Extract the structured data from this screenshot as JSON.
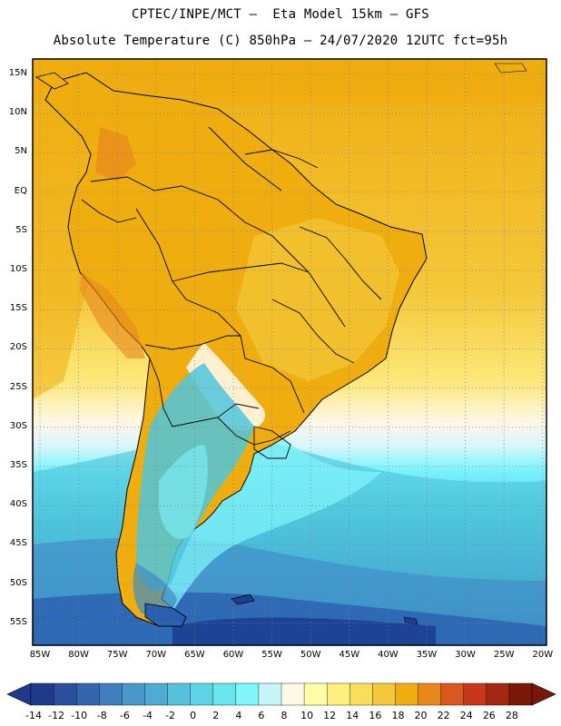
{
  "header": {
    "line1": "CPTEC/INPE/MCT –  Eta Model 15km – GFS",
    "line2": "Absolute Temperature (C) 850hPa – 24/07/2020 12UTC fct=95h"
  },
  "axes": {
    "lat_labels": [
      "15N",
      "10N",
      "5N",
      "EQ",
      "5S",
      "10S",
      "15S",
      "20S",
      "25S",
      "30S",
      "35S",
      "40S",
      "45S",
      "50S",
      "55S"
    ],
    "lon_labels": [
      "85W",
      "80W",
      "75W",
      "70W",
      "65W",
      "60W",
      "55W",
      "50W",
      "45W",
      "40W",
      "35W",
      "30W",
      "25W",
      "20W"
    ]
  },
  "colorbar": {
    "labels": [
      "-14",
      "-12",
      "-10",
      "-8",
      "-6",
      "-4",
      "-2",
      "0",
      "2",
      "4",
      "6",
      "8",
      "10",
      "12",
      "14",
      "16",
      "18",
      "20",
      "22",
      "24",
      "26",
      "28"
    ],
    "colors": [
      "#1f3a8a",
      "#2a4f9c",
      "#3366ad",
      "#3f7fbf",
      "#4a97c9",
      "#4fabd2",
      "#55c1dd",
      "#5fd3e6",
      "#6ae4ef",
      "#7ff6fb",
      "#c8f4fb",
      "#fff8e6",
      "#ffffa8",
      "#fdf07e",
      "#f8de5a",
      "#f4c83a",
      "#efad10",
      "#e8871c",
      "#d9581e",
      "#c9361a",
      "#a22810",
      "#7a1808"
    ]
  },
  "map": {
    "colors": {
      "deep_blue": "#1d3e92",
      "blue": "#2a5fb0",
      "mid_blue": "#3f8cc6",
      "cyan": "#4fc6dc",
      "light_cyan": "#7ff3fb",
      "pale": "#d8f6fb",
      "cream": "#fff7e6",
      "yellow": "#fde87a",
      "light_orange": "#f4c83a",
      "orange": "#efad10",
      "dark_orange": "#e8871c"
    }
  }
}
